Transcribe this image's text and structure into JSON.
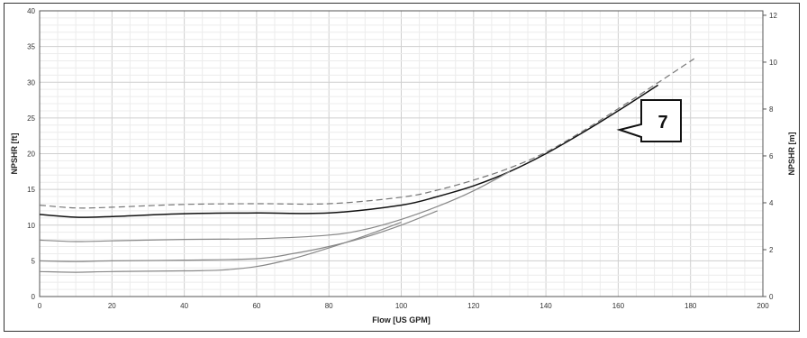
{
  "chart_data": {
    "type": "line",
    "xlabel": "Flow [US GPM]",
    "ylabel": "NPSHR [ft]",
    "y2label": "NPSHR [m]",
    "xlim": [
      0,
      200
    ],
    "ylim": [
      0,
      40
    ],
    "y2lim": [
      0,
      12.19
    ],
    "x_ticks": [
      0,
      20,
      40,
      60,
      80,
      100,
      120,
      140,
      160,
      180,
      200
    ],
    "y_ticks": [
      0,
      5,
      10,
      15,
      20,
      25,
      30,
      35,
      40
    ],
    "y2_ticks": [
      0,
      2,
      4,
      6,
      8,
      10,
      12
    ],
    "grid": true,
    "callout": "7",
    "series": [
      {
        "style": "dashed",
        "color": "#777777",
        "x": [
          0,
          10,
          20,
          40,
          60,
          80,
          100,
          110,
          120,
          130,
          140,
          150,
          160,
          170,
          181
        ],
        "y": [
          12.8,
          12.4,
          12.5,
          12.9,
          13.0,
          13.0,
          13.9,
          14.9,
          16.3,
          18.0,
          20.2,
          23.1,
          26.3,
          29.6,
          33.3
        ]
      },
      {
        "style": "solid",
        "color": "#111111",
        "x": [
          0,
          10,
          20,
          40,
          60,
          80,
          100,
          110,
          120,
          130,
          140,
          150,
          160,
          171
        ],
        "y": [
          11.5,
          11.1,
          11.2,
          11.6,
          11.7,
          11.7,
          12.8,
          14.0,
          15.5,
          17.5,
          20.0,
          22.9,
          26.0,
          29.6
        ]
      },
      {
        "style": "solid",
        "color": "#888888",
        "x": [
          0,
          10,
          20,
          40,
          60,
          80,
          90,
          100,
          110,
          120,
          130
        ],
        "y": [
          7.9,
          7.7,
          7.8,
          8.0,
          8.1,
          8.6,
          9.4,
          10.8,
          12.6,
          14.8,
          17.5
        ]
      },
      {
        "style": "solid",
        "color": "#888888",
        "x": [
          0,
          10,
          20,
          40,
          60,
          70,
          80,
          90,
          100,
          110
        ],
        "y": [
          5.0,
          4.9,
          5.0,
          5.1,
          5.3,
          6.0,
          7.0,
          8.3,
          10.0,
          12.0
        ]
      },
      {
        "style": "solid",
        "color": "#888888",
        "x": [
          0,
          10,
          20,
          40,
          50,
          60,
          70,
          80,
          90,
          100
        ],
        "y": [
          3.5,
          3.4,
          3.5,
          3.6,
          3.7,
          4.2,
          5.3,
          6.8,
          8.5,
          10.4
        ]
      }
    ]
  }
}
